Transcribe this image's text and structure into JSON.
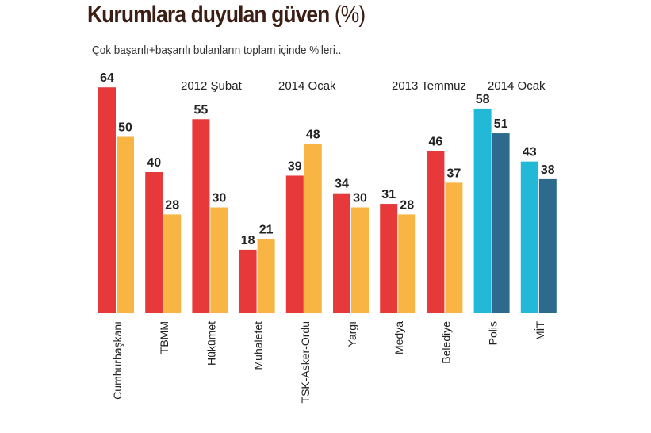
{
  "header": {
    "title": "Kurumlara duyulan güven",
    "title_unit": "(%)",
    "subtitle": "Çok başarılı+başarılı bulanların toplam içinde %'leri.."
  },
  "chart_data": {
    "type": "bar",
    "title": "Kurumlara duyulan güven (%)",
    "subtitle": "Çok başarılı+başarılı bulanların toplam içinde %'leri..",
    "categories": [
      "Cumhurbaşkanı",
      "TBMM",
      "Hükümet",
      "Muhalefet",
      "TSK-Asker-Ordu",
      "Yargı",
      "Medya",
      "Belediye",
      "Polis",
      "MİT"
    ],
    "period_labels": [
      {
        "text": "2012 Şubat",
        "applies_to": "first bar of each pair (Cumhurbaşkanı–Belediye)"
      },
      {
        "text": "2014 Ocak",
        "applies_to": "second bar of each pair (Cumhurbaşkanı–Belediye)"
      },
      {
        "text": "2013 Temmuz",
        "applies_to": "first bar of each pair (Polis, MİT)"
      },
      {
        "text": "2014 Ocak",
        "applies_to": "second bar of each pair (Polis, MİT)"
      }
    ],
    "series": [
      {
        "values": [
          64,
          40,
          55,
          18,
          39,
          34,
          31,
          46,
          58,
          43
        ]
      },
      {
        "values": [
          50,
          28,
          30,
          21,
          48,
          30,
          28,
          37,
          51,
          38
        ]
      }
    ],
    "colors": {
      "first_period": "#e8393a",
      "second_period": "#f8b544",
      "first_period_alt": "#22b9d6",
      "second_period_alt": "#2e6a8c"
    },
    "alt_color_categories": [
      "Polis",
      "MİT"
    ],
    "ylim": [
      0,
      70
    ],
    "grid": false,
    "legend": "none"
  }
}
